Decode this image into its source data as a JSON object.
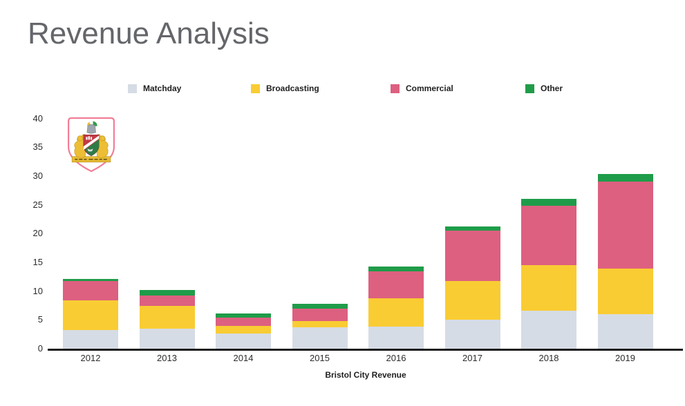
{
  "title": "Revenue Analysis",
  "caption": "Bristol City Revenue",
  "logo": {
    "name": "Bristol City FC crest"
  },
  "colors": {
    "matchday": "#d6dce5",
    "broadcasting": "#f9cc33",
    "commercial": "#dd6080",
    "other": "#1f9c49",
    "axis": "#1c1c1c",
    "title_text": "#64666a"
  },
  "chart_data": {
    "type": "bar",
    "stacked": true,
    "title": "Revenue Analysis",
    "xlabel": "Bristol City Revenue",
    "ylabel": "",
    "categories": [
      "2012",
      "2013",
      "2014",
      "2015",
      "2016",
      "2017",
      "2018",
      "2019"
    ],
    "series": [
      {
        "name": "Matchday",
        "color": "#d6dce5",
        "values": [
          3.3,
          3.5,
          2.7,
          3.7,
          3.9,
          5.0,
          6.6,
          6.0
        ]
      },
      {
        "name": "Broadcasting",
        "color": "#f9cc33",
        "values": [
          5.1,
          4.0,
          1.3,
          1.1,
          4.9,
          6.8,
          7.9,
          7.9
        ]
      },
      {
        "name": "Commercial",
        "color": "#dd6080",
        "values": [
          3.4,
          1.8,
          1.4,
          2.2,
          4.7,
          8.7,
          10.4,
          15.1
        ]
      },
      {
        "name": "Other",
        "color": "#1f9c49",
        "values": [
          0.3,
          0.9,
          0.7,
          0.8,
          0.8,
          0.7,
          1.2,
          1.4
        ]
      }
    ],
    "totals": [
      12.1,
      10.2,
      6.1,
      7.8,
      14.3,
      21.2,
      26.1,
      30.4
    ],
    "ylim": [
      0,
      40
    ],
    "yticks": [
      0,
      5,
      10,
      15,
      20,
      25,
      30,
      35,
      40
    ],
    "grid": false,
    "legend_position": "top"
  }
}
